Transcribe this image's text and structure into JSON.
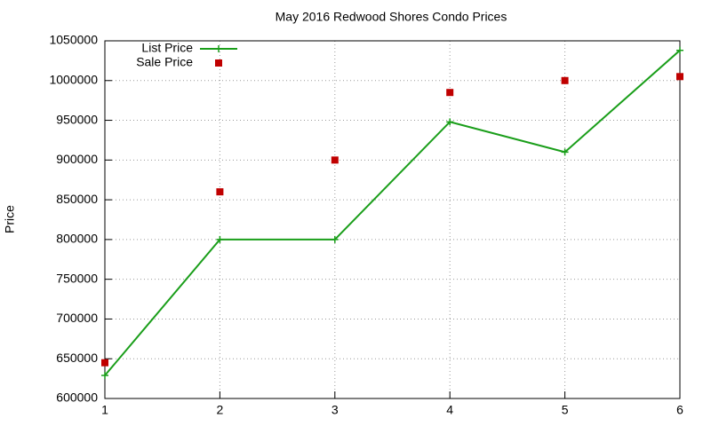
{
  "chart_data": {
    "type": "line",
    "title": "May 2016 Redwood Shores Condo Prices",
    "ylabel": "Price",
    "x": [
      1,
      2,
      3,
      4,
      5,
      6
    ],
    "series": [
      {
        "name": "List Price",
        "color": "#1a9e1a",
        "style": "linespoints",
        "values": [
          629000,
          800000,
          800000,
          948000,
          910000,
          1038000
        ]
      },
      {
        "name": "Sale Price",
        "color": "#c00000",
        "style": "points",
        "values": [
          645000,
          860000,
          900000,
          985000,
          1000000,
          1005000
        ]
      }
    ],
    "xlim": [
      1,
      6
    ],
    "xticks": [
      1,
      2,
      3,
      4,
      5,
      6
    ],
    "ylim": [
      600000,
      1050000
    ],
    "yticks": [
      600000,
      650000,
      700000,
      750000,
      800000,
      850000,
      900000,
      950000,
      1000000,
      1050000
    ],
    "grid": true,
    "legend": "top-left"
  }
}
